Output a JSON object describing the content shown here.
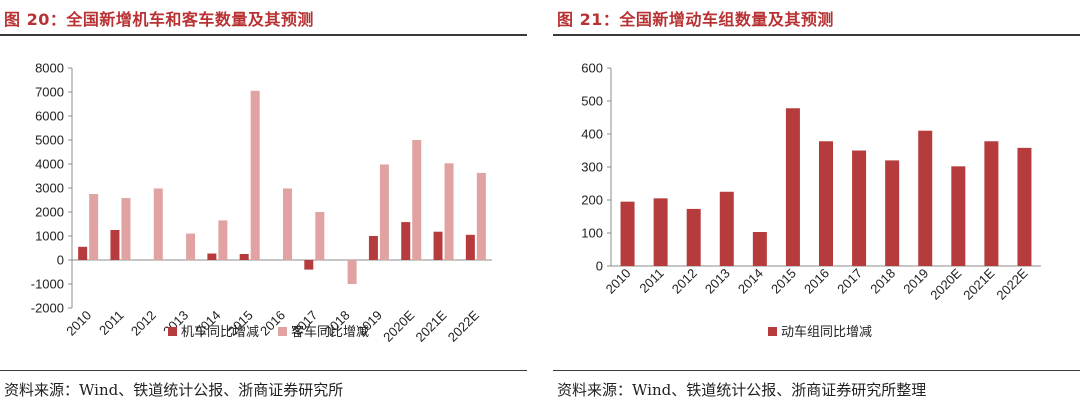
{
  "left": {
    "title": "图 20：全国新增机车和客车数量及其预测",
    "source": "资料来源：Wind、铁道统计公报、浙商证券研究所"
  },
  "right": {
    "title": "图 21：全国新增动车组数量及其预测",
    "source": "资料来源：Wind、铁道统计公报、浙商证券研究所整理"
  },
  "colors": {
    "title": "#b83234",
    "dark_bar": "#b63b3d",
    "light_bar": "#e0a3a2"
  },
  "chart_data": [
    {
      "type": "bar",
      "categories": [
        "2010",
        "2011",
        "2012",
        "2013",
        "2014",
        "2015",
        "2016",
        "2017",
        "2018",
        "2019",
        "2020E",
        "2021E",
        "2022E"
      ],
      "series": [
        {
          "name": "机车同比增减",
          "values": [
            550,
            1250,
            0,
            0,
            270,
            250,
            0,
            -400,
            0,
            1000,
            1580,
            1180,
            1050
          ]
        },
        {
          "name": "客车同比增减",
          "values": [
            2750,
            2580,
            2980,
            1100,
            1650,
            7050,
            2980,
            2000,
            -1000,
            3980,
            5000,
            4030,
            3630
          ]
        }
      ],
      "yticks": [
        "8000",
        "7000",
        "6000",
        "5000",
        "4000",
        "3000",
        "2000",
        "1000",
        "0",
        "-1000",
        "-2000"
      ],
      "ylim": [
        -2000,
        8000
      ],
      "legend": "bottom",
      "grid": false
    },
    {
      "type": "bar",
      "categories": [
        "2010",
        "2011",
        "2012",
        "2013",
        "2014",
        "2015",
        "2016",
        "2017",
        "2018",
        "2019",
        "2020E",
        "2021E",
        "2022E"
      ],
      "series": [
        {
          "name": "动车组同比增减",
          "values": [
            195,
            205,
            173,
            225,
            103,
            478,
            378,
            350,
            320,
            410,
            302,
            378,
            358
          ]
        }
      ],
      "yticks": [
        "600",
        "500",
        "400",
        "300",
        "200",
        "100",
        "0"
      ],
      "ylim": [
        0,
        600
      ],
      "legend": "bottom",
      "grid": false
    }
  ]
}
